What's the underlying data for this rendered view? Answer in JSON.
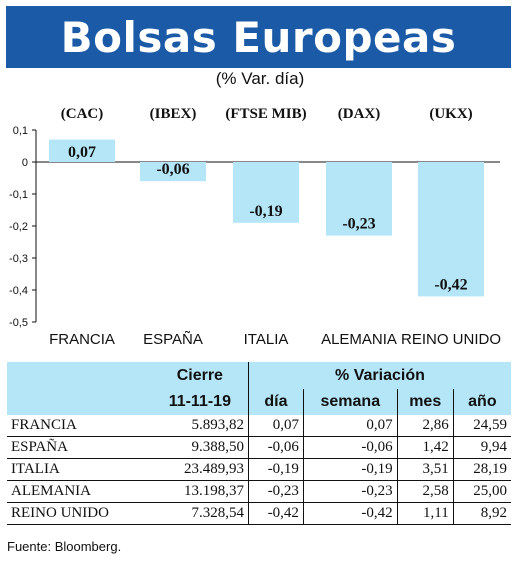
{
  "header": {
    "title": "Bolsas Europeas",
    "subtitle": "(% Var. día)"
  },
  "chart_data": {
    "type": "bar",
    "categories": [
      "FRANCIA",
      "ESPAÑA",
      "ITALIA",
      "ALEMANIA",
      "REINO UNIDO"
    ],
    "indices": [
      "(CAC)",
      "(IBEX)",
      "(FTSE MIB)",
      "(DAX)",
      "(UKX)"
    ],
    "values": [
      0.07,
      -0.06,
      -0.19,
      -0.23,
      -0.42
    ],
    "value_labels": [
      "0,07",
      "-0,06",
      "-0,19",
      "-0,23",
      "-0,42"
    ],
    "yticks": [
      0.1,
      0,
      -0.1,
      -0.2,
      -0.3,
      -0.4,
      -0.5
    ],
    "ytick_labels": [
      "0,1",
      "0",
      "-0,1",
      "-0,2",
      "-0,3",
      "-0,4",
      "-0,5"
    ],
    "ylim": [
      -0.5,
      0.1
    ],
    "grid": false,
    "bar_color": "#b5e6f7"
  },
  "table": {
    "group_headers": {
      "cierre": "Cierre",
      "variacion": "% Variación"
    },
    "sub_headers": [
      "11-11-19",
      "día",
      "semana",
      "mes",
      "año"
    ],
    "rows": [
      {
        "pais": "FRANCIA",
        "cierre": "5.893,82",
        "dia": "0,07",
        "semana": "0,07",
        "mes": "2,86",
        "ano": "24,59"
      },
      {
        "pais": "ESPAÑA",
        "cierre": "9.388,50",
        "dia": "-0,06",
        "semana": "-0,06",
        "mes": "1,42",
        "ano": "9,94"
      },
      {
        "pais": "ITALIA",
        "cierre": "23.489,93",
        "dia": "-0,19",
        "semana": "-0,19",
        "mes": "3,51",
        "ano": "28,19"
      },
      {
        "pais": "ALEMANIA",
        "cierre": "13.198,37",
        "dia": "-0,23",
        "semana": "-0,23",
        "mes": "2,58",
        "ano": "25,00"
      },
      {
        "pais": "REINO UNIDO",
        "cierre": "7.328,54",
        "dia": "-0,42",
        "semana": "-0,42",
        "mes": "1,11",
        "ano": "8,92"
      }
    ]
  },
  "footer": {
    "source": "Fuente: Bloomberg."
  },
  "colors": {
    "banner": "#1a5aa6",
    "accent": "#b5e6f7"
  }
}
